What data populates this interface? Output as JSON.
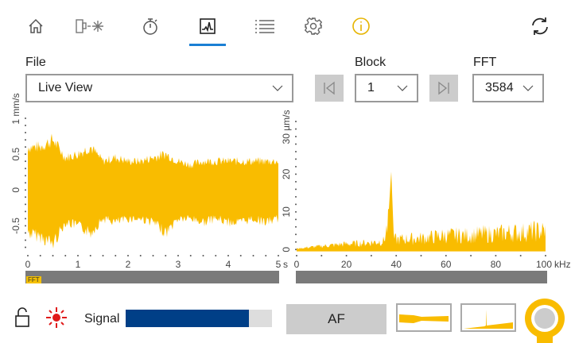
{
  "nav": {
    "items": [
      {
        "name": "home",
        "icon": "home-icon"
      },
      {
        "name": "sensor",
        "icon": "sensor-laser-icon"
      },
      {
        "name": "timer",
        "icon": "stopwatch-icon"
      },
      {
        "name": "chart",
        "icon": "chart-icon",
        "active": true
      },
      {
        "name": "list",
        "icon": "list-icon"
      },
      {
        "name": "settings",
        "icon": "gear-icon"
      },
      {
        "name": "info",
        "icon": "info-icon"
      }
    ],
    "refresh_icon": "refresh-icon",
    "accent": "#1a7fd4"
  },
  "file": {
    "label": "File",
    "value": "Live View"
  },
  "block": {
    "label": "Block",
    "value": "1"
  },
  "fft": {
    "label": "FFT",
    "value": "3584"
  },
  "colors": {
    "signal": "#f9bc00",
    "bar": "#003f87",
    "gray": "#7a7a7a"
  },
  "chart_data": [
    {
      "type": "area",
      "ylabel": "mm/s",
      "xlabel": "s",
      "xlim": [
        0,
        5
      ],
      "ylim": [
        -0.85,
        1
      ],
      "xticks": [
        "0",
        "1",
        "2",
        "3",
        "4",
        "5"
      ],
      "yticks": [
        "-0.5",
        "0",
        "0.5",
        "1"
      ],
      "y_unit_label": "1 mm/s",
      "x_unit_label": "5 s",
      "envelope_x": [
        0,
        0.25,
        0.5,
        0.75,
        1.0,
        1.25,
        1.5,
        1.75,
        2.0,
        2.25,
        2.5,
        2.75,
        3.0,
        3.25,
        3.5,
        3.75,
        4.0,
        4.25,
        4.5,
        4.75,
        5.0
      ],
      "envelope_max": [
        0.6,
        0.6,
        0.7,
        0.45,
        0.5,
        0.6,
        0.4,
        0.45,
        0.4,
        0.4,
        0.45,
        0.5,
        0.4,
        0.35,
        0.4,
        0.4,
        0.4,
        0.4,
        0.4,
        0.4,
        0.4
      ],
      "envelope_min": [
        -0.6,
        -0.65,
        -0.75,
        -0.45,
        -0.5,
        -0.6,
        -0.4,
        -0.45,
        -0.4,
        -0.4,
        -0.45,
        -0.6,
        -0.4,
        -0.4,
        -0.45,
        -0.4,
        -0.45,
        -0.45,
        -0.4,
        -0.45,
        -0.4
      ]
    },
    {
      "type": "area",
      "ylabel": "µm/s",
      "xlabel": "kHz",
      "xlim": [
        0,
        100
      ],
      "ylim": [
        -1,
        34
      ],
      "xticks": [
        "0",
        "20",
        "40",
        "60",
        "80",
        "100"
      ],
      "yticks": [
        "0",
        "10",
        "20",
        "30"
      ],
      "y_unit_label": "30 µm/s",
      "x_unit_label": "100 kHz",
      "x": [
        0,
        5,
        10,
        15,
        20,
        25,
        30,
        35,
        37,
        38,
        39,
        40,
        45,
        50,
        55,
        60,
        65,
        70,
        75,
        80,
        85,
        90,
        95,
        100
      ],
      "y": [
        0.3,
        0.8,
        1.2,
        1.6,
        2,
        2.2,
        2.5,
        3,
        10,
        21,
        4,
        3.5,
        3.8,
        4,
        4.5,
        5,
        5,
        5,
        5.5,
        5.5,
        6,
        6,
        6.5,
        6.5
      ]
    }
  ],
  "bottom": {
    "lock_icon": "unlock-icon",
    "laser_icon": "laser-indicator-icon",
    "signal_label": "Signal",
    "signal_level": 0.84,
    "af_label": "AF"
  }
}
